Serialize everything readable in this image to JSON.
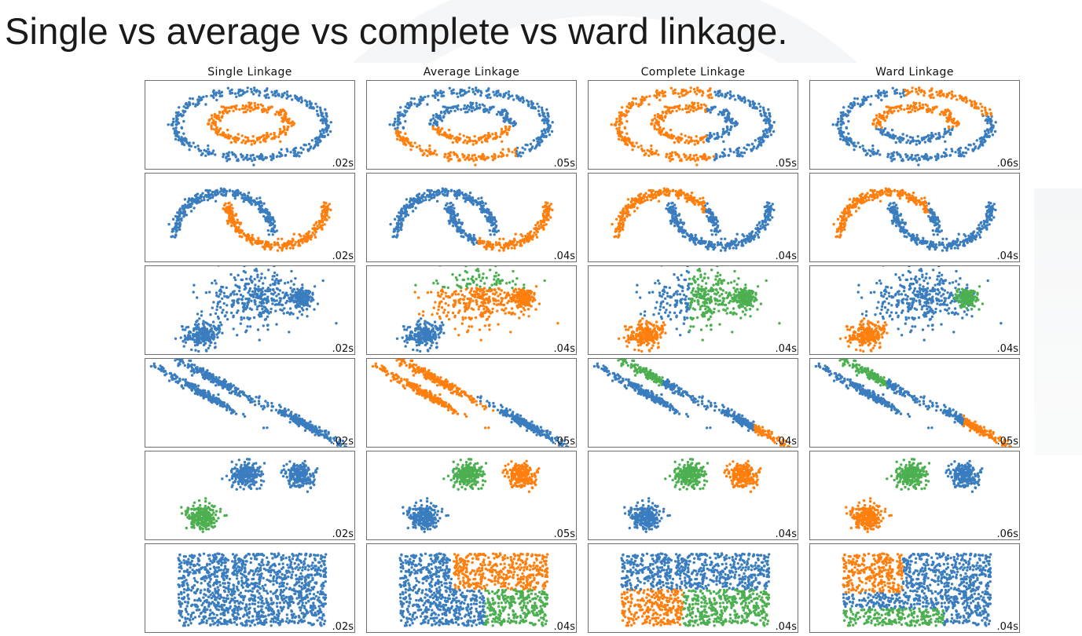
{
  "title": "Single vs average vs complete vs ward linkage.",
  "colors": {
    "blue": "#3a7dbf",
    "orange": "#ff7f0e",
    "green": "#4caf50"
  },
  "columns": [
    "Single Linkage",
    "Average Linkage",
    "Complete Linkage",
    "Ward Linkage"
  ],
  "rows": [
    {
      "dataset": "circles",
      "times": [
        ".02s",
        ".05s",
        ".05s",
        ".06s"
      ]
    },
    {
      "dataset": "moons",
      "times": [
        ".02s",
        ".04s",
        ".04s",
        ".04s"
      ]
    },
    {
      "dataset": "varied",
      "times": [
        ".02s",
        ".04s",
        ".04s",
        ".04s"
      ]
    },
    {
      "dataset": "aniso",
      "times": [
        ".02s",
        ".05s",
        ".04s",
        ".05s"
      ]
    },
    {
      "dataset": "blobs",
      "times": [
        ".02s",
        ".05s",
        ".04s",
        ".06s"
      ]
    },
    {
      "dataset": "uniform",
      "times": [
        ".02s",
        ".04s",
        ".04s",
        ".04s"
      ]
    }
  ]
}
